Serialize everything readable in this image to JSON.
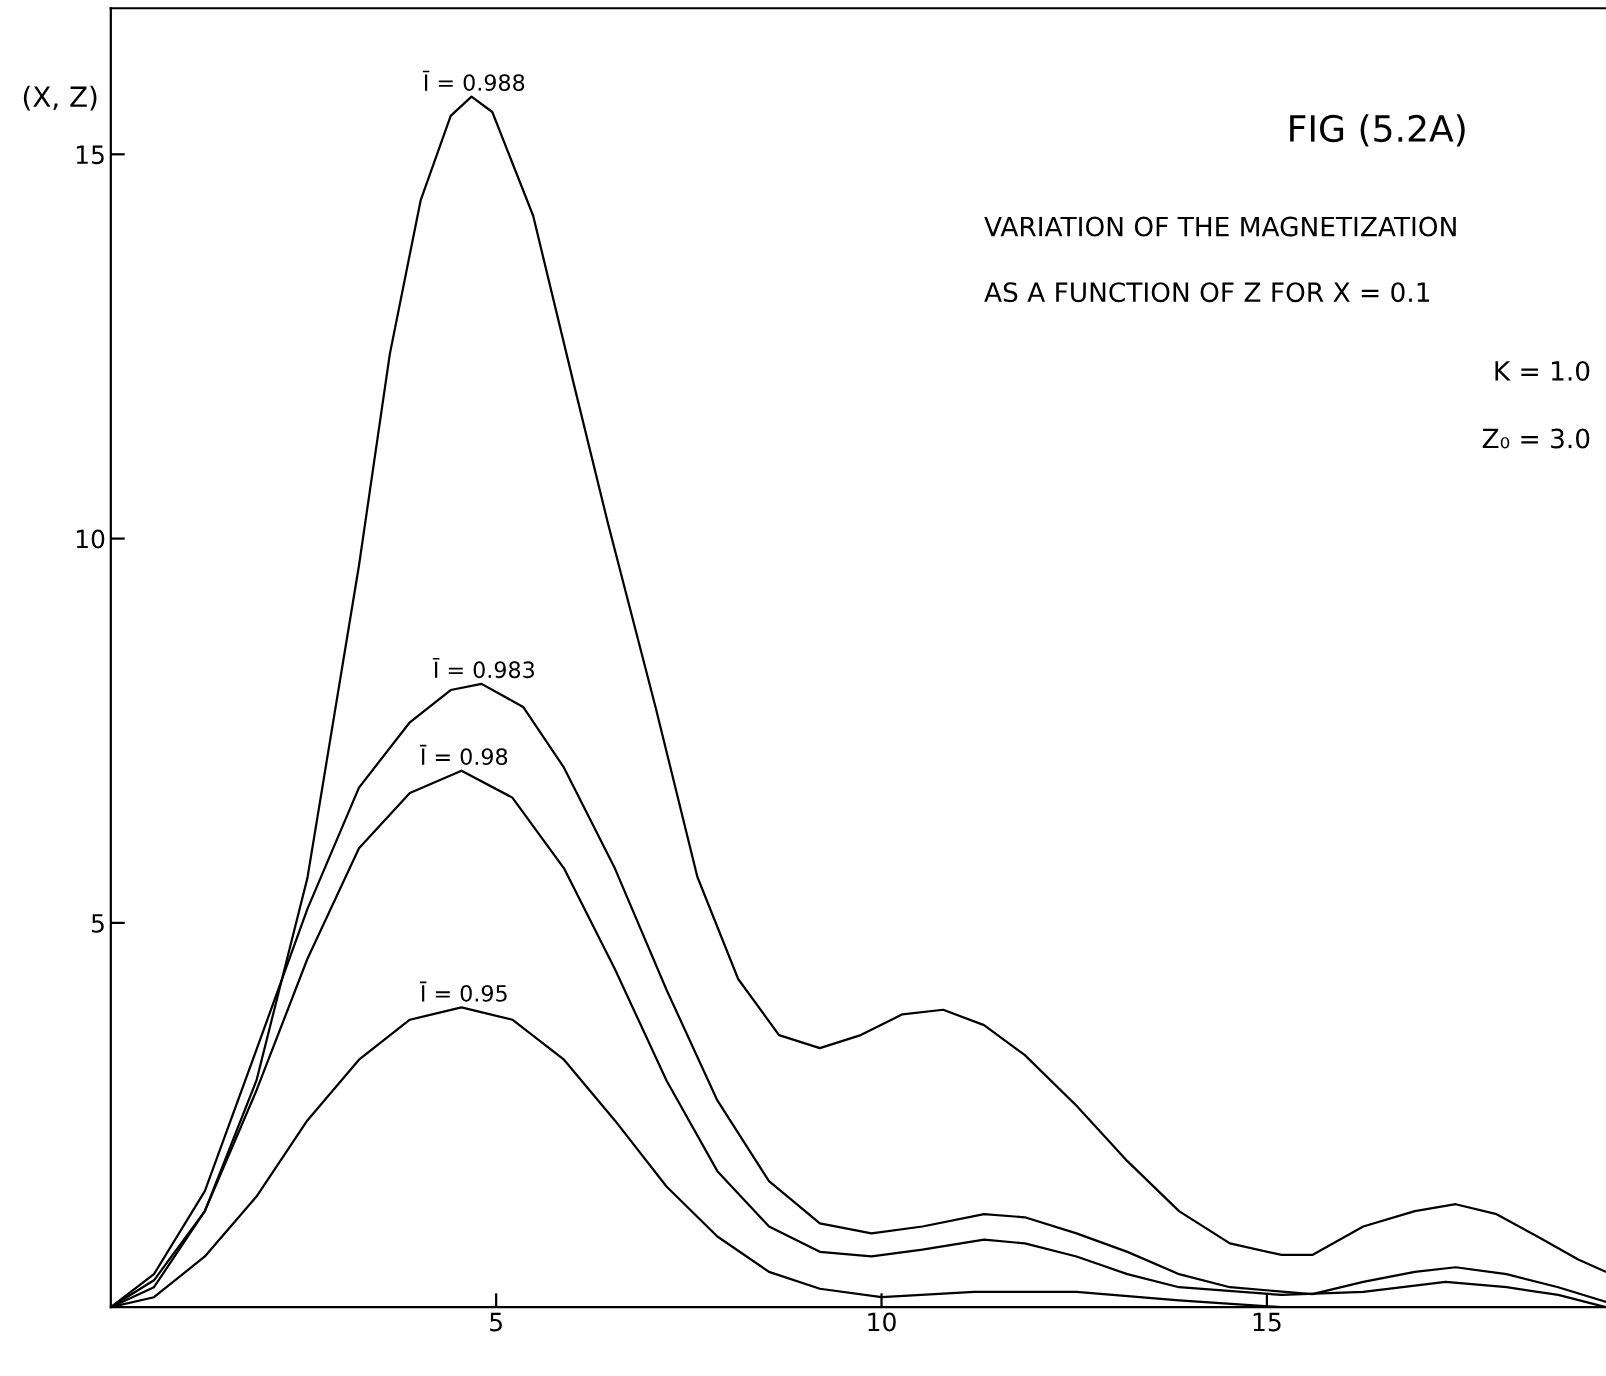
{
  "chart_data": {
    "type": "line",
    "title": "FIG (5.2A)",
    "subtitle": "VARIATION OF THE MAGNETIZATION\nAS A FUNCTION OF Z FOR X = 0.1",
    "ylabel": "(X, Z)",
    "annotations": [
      "K = 1.0",
      "Z₀ = 3.0"
    ],
    "xlim": [
      0,
      19.4
    ],
    "ylim": [
      0,
      16.9
    ],
    "xticks": [
      5,
      10,
      15
    ],
    "yticks": [
      5,
      10,
      15
    ],
    "grid": false,
    "legend": false,
    "marker": "none",
    "line_style": "solid",
    "series": [
      {
        "name": "Ī = 0.988",
        "color": "#000000",
        "x": [
          0,
          0.56,
          1.22,
          1.89,
          2.55,
          3.22,
          3.62,
          4.02,
          4.41,
          4.68,
          4.95,
          5.48,
          6.01,
          6.45,
          7.07,
          7.61,
          8.14,
          8.67,
          9.2,
          9.73,
          10.27,
          10.8,
          11.33,
          11.86,
          12.53,
          13.19,
          13.86,
          14.52,
          15.19,
          15.59,
          16.25,
          16.92,
          17.45,
          17.98,
          18.51,
          19.04,
          19.4
        ],
        "values": [
          0,
          0.26,
          1.25,
          2.95,
          5.58,
          9.65,
          12.4,
          14.4,
          15.5,
          15.75,
          15.55,
          14.2,
          12.0,
          10.2,
          7.8,
          5.6,
          4.27,
          3.54,
          3.37,
          3.54,
          3.81,
          3.87,
          3.67,
          3.28,
          2.62,
          1.9,
          1.25,
          0.83,
          0.68,
          0.68,
          1.05,
          1.25,
          1.34,
          1.21,
          0.92,
          0.62,
          0.46
        ]
      },
      {
        "name": "Ī = 0.983",
        "color": "#000000",
        "x": [
          0,
          0.56,
          1.22,
          1.89,
          2.55,
          3.22,
          3.88,
          4.41,
          4.81,
          5.35,
          5.88,
          6.54,
          7.21,
          7.87,
          8.54,
          9.2,
          9.87,
          10.53,
          11.33,
          11.86,
          12.53,
          13.19,
          13.86,
          14.52,
          15.59,
          16.25,
          16.92,
          17.45,
          18.11,
          18.78,
          19.4
        ],
        "values": [
          0,
          0.43,
          1.51,
          3.35,
          5.18,
          6.76,
          7.61,
          8.03,
          8.11,
          7.81,
          7.02,
          5.71,
          4.13,
          2.69,
          1.64,
          1.09,
          0.96,
          1.05,
          1.21,
          1.17,
          0.96,
          0.72,
          0.43,
          0.26,
          0.17,
          0.33,
          0.46,
          0.52,
          0.43,
          0.26,
          0.07
        ]
      },
      {
        "name": "Ī = 0.98",
        "color": "#000000",
        "x": [
          0,
          0.56,
          1.22,
          1.89,
          2.55,
          3.22,
          3.88,
          4.55,
          5.21,
          5.88,
          6.54,
          7.21,
          7.87,
          8.54,
          9.2,
          9.87,
          10.53,
          11.33,
          11.86,
          12.53,
          13.19,
          13.86,
          15.19,
          16.25,
          17.32,
          18.11,
          18.78,
          19.4
        ],
        "values": [
          0,
          0.35,
          1.25,
          2.82,
          4.53,
          5.97,
          6.69,
          6.98,
          6.63,
          5.71,
          4.4,
          2.95,
          1.77,
          1.05,
          0.72,
          0.66,
          0.75,
          0.88,
          0.83,
          0.66,
          0.43,
          0.26,
          0.16,
          0.2,
          0.33,
          0.26,
          0.16,
          0
        ]
      },
      {
        "name": "Ī = 0.95",
        "color": "#000000",
        "x": [
          0,
          0.56,
          1.22,
          1.89,
          2.55,
          3.22,
          3.88,
          4.55,
          5.21,
          5.88,
          6.54,
          7.21,
          7.87,
          8.54,
          9.2,
          10.0,
          11.2,
          12.53,
          13.86,
          15.19,
          17.19,
          19.4
        ],
        "values": [
          0,
          0.13,
          0.66,
          1.44,
          2.43,
          3.22,
          3.74,
          3.9,
          3.74,
          3.22,
          2.43,
          1.57,
          0.92,
          0.46,
          0.24,
          0.13,
          0.2,
          0.2,
          0.09,
          0,
          0,
          0
        ]
      }
    ]
  }
}
